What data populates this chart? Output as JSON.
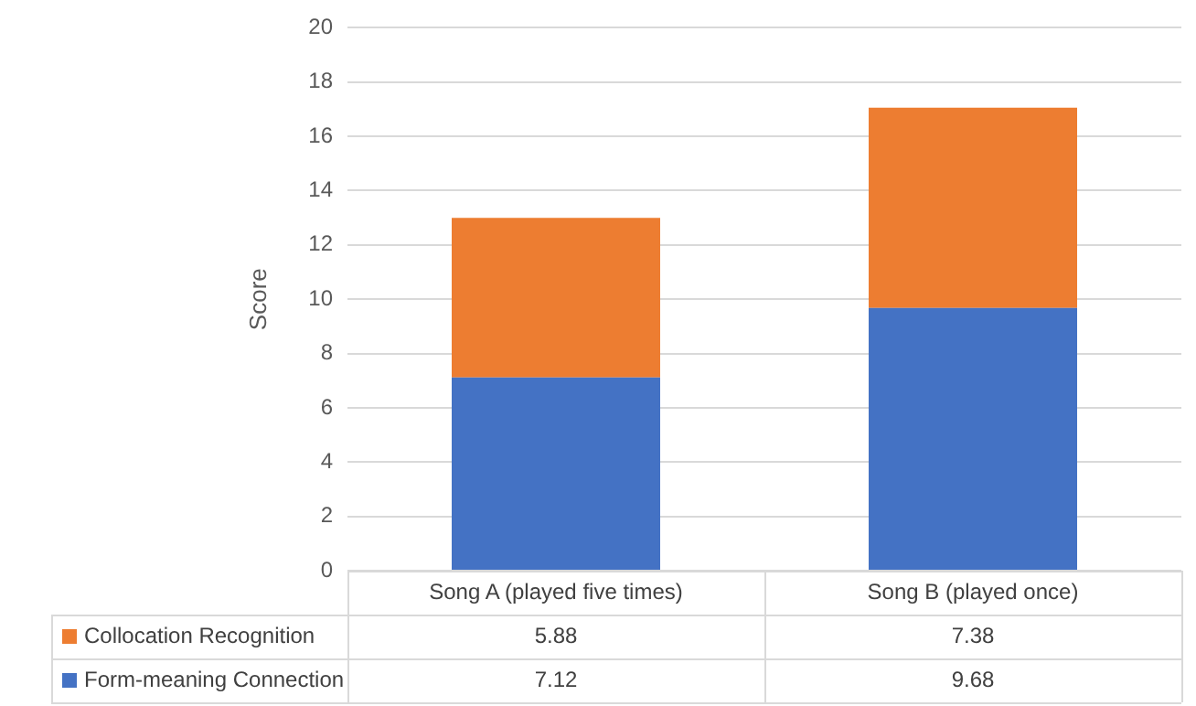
{
  "chart_data": {
    "type": "bar",
    "ylabel": "Score",
    "categories": [
      "Song A (played five times)",
      "Song B (played once)"
    ],
    "series": [
      {
        "name": "Form-meaning Connection",
        "color": "#4472c4",
        "values": [
          7.12,
          9.68
        ]
      },
      {
        "name": "Collocation Recognition",
        "color": "#ed7d31",
        "values": [
          5.88,
          7.38
        ]
      }
    ],
    "stacked": true,
    "ylim": [
      0,
      20
    ],
    "yticks": [
      0,
      2,
      4,
      6,
      8,
      10,
      12,
      14,
      16,
      18,
      20
    ],
    "grid": "y",
    "legend": "bottom",
    "data_labels": true
  }
}
